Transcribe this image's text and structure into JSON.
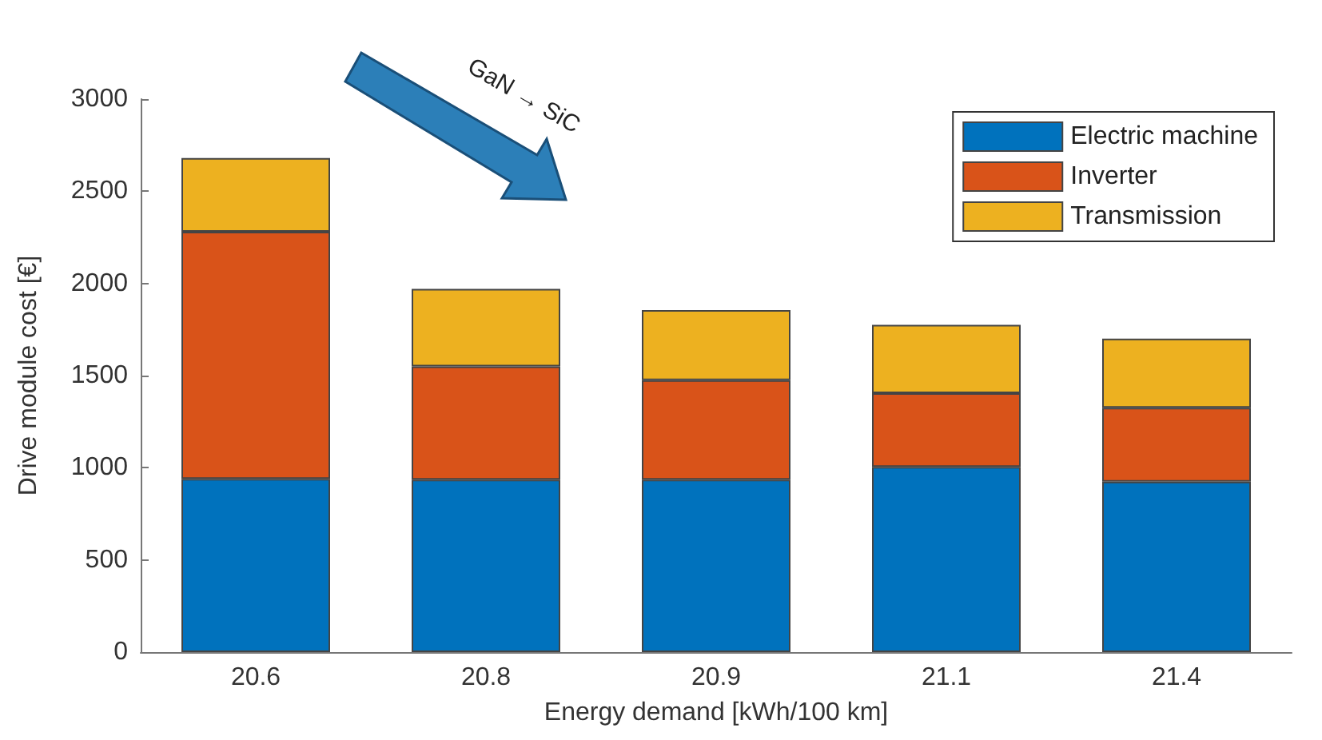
{
  "chart_data": {
    "type": "bar",
    "stacked": true,
    "xlabel": "Energy demand [kWh/100 km]",
    "ylabel": "Drive module cost [€]",
    "categories": [
      "20.6",
      "20.8",
      "20.9",
      "21.1",
      "21.4"
    ],
    "series": [
      {
        "name": "Electric machine",
        "color": "#0072bd",
        "values": [
          940,
          935,
          935,
          1005,
          925
        ]
      },
      {
        "name": "Inverter",
        "color": "#d95319",
        "values": [
          1340,
          615,
          540,
          400,
          400
        ]
      },
      {
        "name": "Transmission",
        "color": "#edb120",
        "values": [
          400,
          420,
          380,
          370,
          375
        ]
      }
    ],
    "ylim": [
      0,
      3000
    ],
    "yticks": [
      0,
      500,
      1000,
      1500,
      2000,
      2500,
      3000
    ],
    "grid": false,
    "legend": "top right",
    "annotations": [
      "GaN → SiC"
    ]
  }
}
